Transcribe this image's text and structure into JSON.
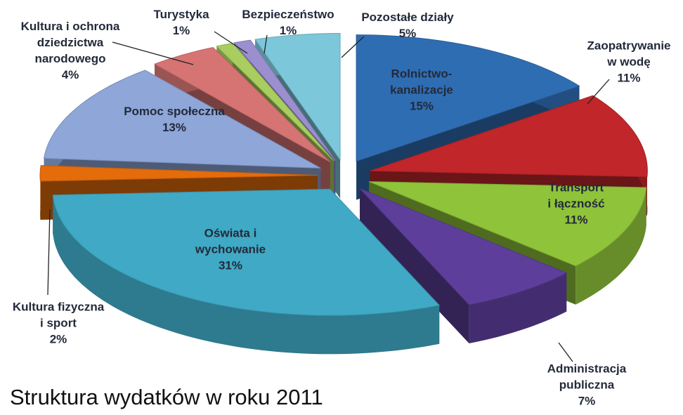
{
  "chart_data": {
    "type": "pie3d",
    "title": "Struktura wydatków w roku 2011",
    "categories": [
      "Rolnictwo-\nkanalizacje",
      "Zaopatrywanie\nw wodę",
      "Transport\ni łączność",
      "Administracja\npubliczna",
      "Oświata i\nwychowanie",
      "Kultura fizyczna\ni sport",
      "Pomoc społeczna",
      "Kultura i ochrona\ndziedzictwa\nnarodowego",
      "Turystyka",
      "Bezpieczeństwo",
      "Pozostałe działy"
    ],
    "values": [
      15,
      11,
      11,
      7,
      31,
      2,
      13,
      4,
      1,
      1,
      5
    ],
    "value_labels": [
      "15%",
      "11%",
      "11%",
      "7%",
      "31%",
      "2%",
      "13%",
      "4%",
      "1%",
      "1%",
      "5%"
    ],
    "colors": [
      "#2f6db3",
      "#c0262a",
      "#8fc33a",
      "#5d3f9b",
      "#40a9c5",
      "#e46c0a",
      "#8ea6d8",
      "#d67474",
      "#a9cd5f",
      "#9b8fd0",
      "#7dc7da"
    ]
  }
}
